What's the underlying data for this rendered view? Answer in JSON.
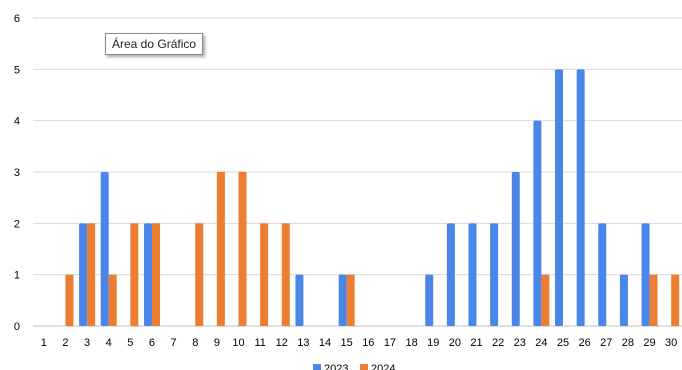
{
  "tooltip": {
    "text": "Área do Gráfico"
  },
  "colors": {
    "series_2023": "#4a86e8",
    "series_2024": "#ed7d31",
    "gridline": "#d9d9d9",
    "axis": "#bfbfbf"
  },
  "chart_data": {
    "type": "bar",
    "title": "",
    "xlabel": "",
    "ylabel": "",
    "ylim": [
      0,
      6
    ],
    "yticks": [
      0,
      1,
      2,
      3,
      4,
      5,
      6
    ],
    "grid": true,
    "legend_position": "bottom",
    "categories": [
      "1",
      "2",
      "3",
      "4",
      "5",
      "6",
      "7",
      "8",
      "9",
      "10",
      "11",
      "12",
      "13",
      "14",
      "15",
      "16",
      "17",
      "18",
      "19",
      "20",
      "21",
      "22",
      "23",
      "24",
      "25",
      "26",
      "27",
      "28",
      "29",
      "30"
    ],
    "series": [
      {
        "name": "2023",
        "values": [
          0,
          0,
          2,
          3,
          0,
          2,
          0,
          0,
          0,
          0,
          0,
          0,
          1,
          0,
          1,
          0,
          0,
          0,
          1,
          2,
          2,
          2,
          3,
          4,
          5,
          5,
          2,
          1,
          2,
          0
        ]
      },
      {
        "name": "2024",
        "values": [
          0,
          1,
          2,
          1,
          2,
          2,
          0,
          2,
          3,
          3,
          2,
          2,
          0,
          0,
          1,
          0,
          0,
          0,
          0,
          0,
          0,
          0,
          0,
          1,
          0,
          0,
          0,
          0,
          1,
          1
        ]
      }
    ]
  }
}
